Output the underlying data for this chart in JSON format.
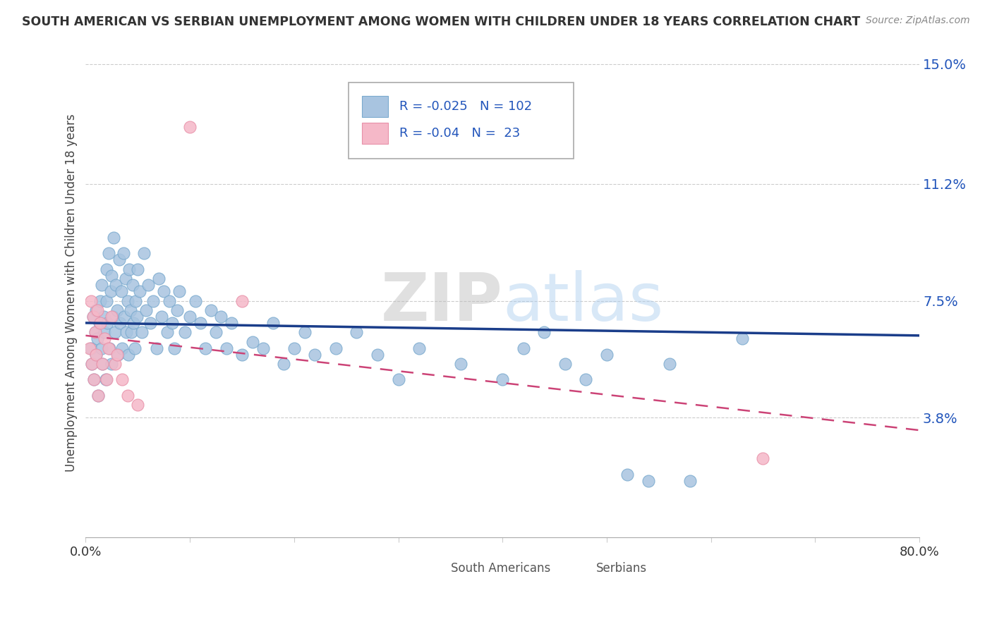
{
  "title": "SOUTH AMERICAN VS SERBIAN UNEMPLOYMENT AMONG WOMEN WITH CHILDREN UNDER 18 YEARS CORRELATION CHART",
  "source": "Source: ZipAtlas.com",
  "ylabel": "Unemployment Among Women with Children Under 18 years",
  "xlim": [
    0.0,
    0.8
  ],
  "ylim": [
    0.0,
    0.155
  ],
  "yticks": [
    0.038,
    0.075,
    0.112,
    0.15
  ],
  "ytick_labels": [
    "3.8%",
    "7.5%",
    "11.2%",
    "15.0%"
  ],
  "xticks": [
    0.0,
    0.1,
    0.2,
    0.3,
    0.4,
    0.5,
    0.6,
    0.7,
    0.8
  ],
  "xtick_labels": [
    "0.0%",
    "",
    "",
    "",
    "",
    "",
    "",
    "",
    "80.0%"
  ],
  "blue_color": "#a8c4e0",
  "blue_edge_color": "#7aaace",
  "blue_line_color": "#1a3d8a",
  "pink_color": "#f5b8c8",
  "pink_edge_color": "#e890a8",
  "pink_line_color": "#cc4477",
  "R_blue": -0.025,
  "N_blue": 102,
  "R_pink": -0.04,
  "N_pink": 23,
  "watermark_zip": "ZIP",
  "watermark_atlas": "atlas",
  "south_american_x": [
    0.005,
    0.006,
    0.007,
    0.008,
    0.009,
    0.01,
    0.01,
    0.011,
    0.012,
    0.013,
    0.014,
    0.015,
    0.015,
    0.016,
    0.017,
    0.018,
    0.019,
    0.02,
    0.02,
    0.021,
    0.022,
    0.023,
    0.024,
    0.025,
    0.025,
    0.026,
    0.027,
    0.028,
    0.029,
    0.03,
    0.031,
    0.032,
    0.033,
    0.034,
    0.035,
    0.036,
    0.037,
    0.038,
    0.039,
    0.04,
    0.041,
    0.042,
    0.043,
    0.044,
    0.045,
    0.046,
    0.047,
    0.048,
    0.049,
    0.05,
    0.052,
    0.054,
    0.056,
    0.058,
    0.06,
    0.062,
    0.065,
    0.068,
    0.07,
    0.073,
    0.075,
    0.078,
    0.08,
    0.083,
    0.085,
    0.088,
    0.09,
    0.095,
    0.1,
    0.105,
    0.11,
    0.115,
    0.12,
    0.125,
    0.13,
    0.135,
    0.14,
    0.15,
    0.16,
    0.17,
    0.18,
    0.19,
    0.2,
    0.21,
    0.22,
    0.24,
    0.26,
    0.28,
    0.3,
    0.32,
    0.36,
    0.4,
    0.42,
    0.44,
    0.46,
    0.48,
    0.5,
    0.52,
    0.54,
    0.56,
    0.58,
    0.63
  ],
  "south_american_y": [
    0.06,
    0.055,
    0.07,
    0.05,
    0.065,
    0.058,
    0.072,
    0.063,
    0.045,
    0.068,
    0.075,
    0.06,
    0.08,
    0.055,
    0.07,
    0.065,
    0.05,
    0.075,
    0.085,
    0.068,
    0.09,
    0.06,
    0.078,
    0.055,
    0.083,
    0.07,
    0.095,
    0.065,
    0.08,
    0.072,
    0.058,
    0.088,
    0.068,
    0.078,
    0.06,
    0.09,
    0.07,
    0.082,
    0.065,
    0.075,
    0.058,
    0.085,
    0.072,
    0.065,
    0.08,
    0.068,
    0.06,
    0.075,
    0.07,
    0.085,
    0.078,
    0.065,
    0.09,
    0.072,
    0.08,
    0.068,
    0.075,
    0.06,
    0.082,
    0.07,
    0.078,
    0.065,
    0.075,
    0.068,
    0.06,
    0.072,
    0.078,
    0.065,
    0.07,
    0.075,
    0.068,
    0.06,
    0.072,
    0.065,
    0.07,
    0.06,
    0.068,
    0.058,
    0.062,
    0.06,
    0.068,
    0.055,
    0.06,
    0.065,
    0.058,
    0.06,
    0.065,
    0.058,
    0.05,
    0.06,
    0.055,
    0.05,
    0.06,
    0.065,
    0.055,
    0.05,
    0.058,
    0.02,
    0.018,
    0.055,
    0.018,
    0.063
  ],
  "serbian_x": [
    0.004,
    0.005,
    0.006,
    0.007,
    0.008,
    0.009,
    0.01,
    0.011,
    0.012,
    0.014,
    0.016,
    0.018,
    0.02,
    0.022,
    0.025,
    0.028,
    0.03,
    0.035,
    0.04,
    0.05,
    0.1,
    0.15,
    0.65
  ],
  "serbian_y": [
    0.06,
    0.075,
    0.055,
    0.07,
    0.05,
    0.065,
    0.058,
    0.072,
    0.045,
    0.068,
    0.055,
    0.063,
    0.05,
    0.06,
    0.07,
    0.055,
    0.058,
    0.05,
    0.045,
    0.042,
    0.13,
    0.075,
    0.025
  ],
  "blue_trend_x0": 0.0,
  "blue_trend_y0": 0.068,
  "blue_trend_x1": 0.8,
  "blue_trend_y1": 0.064,
  "pink_trend_x0": 0.0,
  "pink_trend_y0": 0.064,
  "pink_trend_x1": 0.8,
  "pink_trend_y1": 0.034
}
